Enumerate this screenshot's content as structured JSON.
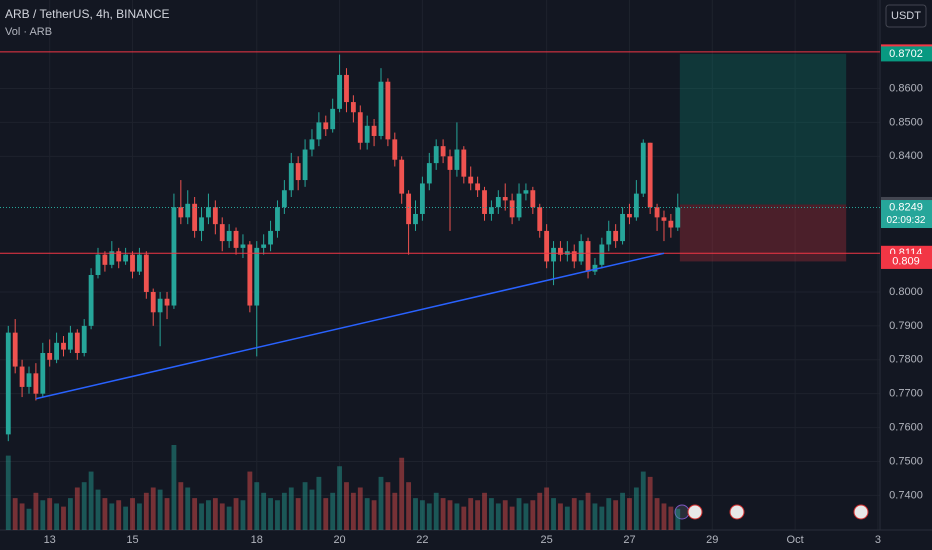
{
  "chart_data": {
    "type": "candlestick",
    "title": "ARB / TetherUS, 4h, BINANCE",
    "indicator": "Vol · ARB",
    "currency": "USDT",
    "open": [
      0.758,
      0.788,
      0.778,
      0.772,
      0.776,
      0.77,
      0.782,
      0.78,
      0.785,
      0.783,
      0.788,
      0.782,
      0.79,
      0.805,
      0.811,
      0.808,
      0.812,
      0.809,
      0.811,
      0.806,
      0.811,
      0.8,
      0.794,
      0.798,
      0.796,
      0.825,
      0.822,
      0.826,
      0.818,
      0.822,
      0.825,
      0.82,
      0.815,
      0.818,
      0.813,
      0.814,
      0.796,
      0.813,
      0.814,
      0.818,
      0.825,
      0.83,
      0.838,
      0.833,
      0.842,
      0.845,
      0.85,
      0.848,
      0.854,
      0.864,
      0.856,
      0.853,
      0.844,
      0.849,
      0.846,
      0.862,
      0.845,
      0.839,
      0.829,
      0.82,
      0.823,
      0.832,
      0.838,
      0.843,
      0.84,
      0.836,
      0.842,
      0.834,
      0.832,
      0.83,
      0.823,
      0.825,
      0.828,
      0.827,
      0.822,
      0.829,
      0.83,
      0.825,
      0.818,
      0.809,
      0.813,
      0.811,
      0.812,
      0.809,
      0.815,
      0.806,
      0.808,
      0.814,
      0.818,
      0.815,
      0.823,
      0.822,
      0.829,
      0.844,
      0.825,
      0.822,
      0.821,
      0.819
    ],
    "high": [
      0.79,
      0.792,
      0.78,
      0.778,
      0.779,
      0.785,
      0.786,
      0.788,
      0.787,
      0.79,
      0.789,
      0.792,
      0.807,
      0.813,
      0.812,
      0.815,
      0.813,
      0.813,
      0.812,
      0.813,
      0.812,
      0.801,
      0.8,
      0.8,
      0.829,
      0.833,
      0.83,
      0.828,
      0.825,
      0.829,
      0.827,
      0.822,
      0.82,
      0.819,
      0.817,
      0.815,
      0.815,
      0.817,
      0.821,
      0.827,
      0.833,
      0.841,
      0.84,
      0.845,
      0.848,
      0.853,
      0.852,
      0.857,
      0.87,
      0.866,
      0.858,
      0.855,
      0.852,
      0.851,
      0.866,
      0.863,
      0.847,
      0.84,
      0.83,
      0.827,
      0.834,
      0.841,
      0.845,
      0.845,
      0.842,
      0.85,
      0.843,
      0.837,
      0.834,
      0.831,
      0.827,
      0.83,
      0.832,
      0.829,
      0.832,
      0.832,
      0.831,
      0.826,
      0.82,
      0.815,
      0.815,
      0.815,
      0.814,
      0.817,
      0.816,
      0.81,
      0.816,
      0.821,
      0.82,
      0.825,
      0.826,
      0.833,
      0.845,
      0.844,
      0.826,
      0.824,
      0.823,
      0.829
    ],
    "low": [
      0.756,
      0.776,
      0.769,
      0.77,
      0.768,
      0.769,
      0.778,
      0.779,
      0.781,
      0.782,
      0.78,
      0.781,
      0.789,
      0.804,
      0.806,
      0.807,
      0.807,
      0.808,
      0.804,
      0.805,
      0.798,
      0.79,
      0.784,
      0.792,
      0.795,
      0.82,
      0.82,
      0.816,
      0.815,
      0.82,
      0.817,
      0.812,
      0.813,
      0.811,
      0.81,
      0.794,
      0.781,
      0.811,
      0.812,
      0.816,
      0.823,
      0.828,
      0.83,
      0.831,
      0.84,
      0.843,
      0.846,
      0.847,
      0.853,
      0.853,
      0.85,
      0.842,
      0.842,
      0.843,
      0.845,
      0.843,
      0.837,
      0.826,
      0.811,
      0.818,
      0.821,
      0.83,
      0.836,
      0.838,
      0.818,
      0.834,
      0.832,
      0.83,
      0.828,
      0.821,
      0.821,
      0.823,
      0.824,
      0.82,
      0.821,
      0.827,
      0.823,
      0.816,
      0.807,
      0.802,
      0.809,
      0.809,
      0.807,
      0.808,
      0.804,
      0.805,
      0.807,
      0.812,
      0.813,
      0.814,
      0.82,
      0.821,
      0.828,
      0.823,
      0.818,
      0.815,
      0.816,
      0.818
    ],
    "close": [
      0.788,
      0.778,
      0.772,
      0.776,
      0.77,
      0.782,
      0.78,
      0.785,
      0.783,
      0.788,
      0.782,
      0.79,
      0.805,
      0.811,
      0.808,
      0.812,
      0.809,
      0.811,
      0.806,
      0.811,
      0.8,
      0.794,
      0.798,
      0.796,
      0.825,
      0.822,
      0.826,
      0.818,
      0.822,
      0.825,
      0.82,
      0.815,
      0.818,
      0.813,
      0.814,
      0.796,
      0.813,
      0.814,
      0.818,
      0.825,
      0.83,
      0.838,
      0.833,
      0.842,
      0.845,
      0.85,
      0.848,
      0.854,
      0.864,
      0.856,
      0.853,
      0.844,
      0.849,
      0.846,
      0.862,
      0.845,
      0.839,
      0.829,
      0.82,
      0.823,
      0.832,
      0.838,
      0.843,
      0.84,
      0.836,
      0.842,
      0.834,
      0.832,
      0.83,
      0.823,
      0.825,
      0.828,
      0.827,
      0.822,
      0.829,
      0.83,
      0.825,
      0.818,
      0.809,
      0.813,
      0.811,
      0.812,
      0.809,
      0.815,
      0.806,
      0.808,
      0.814,
      0.818,
      0.815,
      0.823,
      0.822,
      0.829,
      0.844,
      0.825,
      0.822,
      0.821,
      0.819,
      0.8249
    ],
    "volume": [
      70,
      30,
      25,
      20,
      35,
      28,
      30,
      25,
      22,
      30,
      40,
      45,
      55,
      38,
      30,
      25,
      28,
      22,
      30,
      25,
      35,
      40,
      38,
      30,
      80,
      45,
      40,
      30,
      25,
      28,
      30,
      25,
      22,
      30,
      28,
      55,
      45,
      35,
      30,
      28,
      35,
      40,
      30,
      45,
      38,
      50,
      30,
      35,
      60,
      45,
      35,
      40,
      30,
      28,
      50,
      45,
      35,
      68,
      45,
      30,
      28,
      25,
      35,
      30,
      28,
      25,
      22,
      30,
      28,
      35,
      30,
      25,
      28,
      22,
      30,
      25,
      28,
      35,
      40,
      30,
      25,
      22,
      30,
      28,
      35,
      25,
      22,
      30,
      28,
      35,
      30,
      40,
      55,
      50,
      30,
      25,
      22,
      20
    ],
    "colors": {
      "up": "#26a69a",
      "down": "#ef5350"
    },
    "ylim": [
      0.7298,
      0.8861
    ],
    "yticks": [
      {
        "value": 0.74,
        "label": "0.7400"
      },
      {
        "value": 0.75,
        "label": "0.7500"
      },
      {
        "value": 0.76,
        "label": "0.7600"
      },
      {
        "value": 0.77,
        "label": "0.7700"
      },
      {
        "value": 0.78,
        "label": "0.7800"
      },
      {
        "value": 0.79,
        "label": "0.7900"
      },
      {
        "value": 0.8,
        "label": "0.8000"
      },
      {
        "value": 0.84,
        "label": "0.8400"
      },
      {
        "value": 0.85,
        "label": "0.8500"
      },
      {
        "value": 0.86,
        "label": "0.8600"
      }
    ],
    "xlim": [
      -1.2,
      126.3
    ],
    "xticks": [
      {
        "value": 6,
        "label": "13"
      },
      {
        "value": 18,
        "label": "15"
      },
      {
        "value": 36,
        "label": "18"
      },
      {
        "value": 48,
        "label": "20"
      },
      {
        "value": 60,
        "label": "22"
      },
      {
        "value": 78,
        "label": "25"
      },
      {
        "value": 90,
        "label": "27"
      },
      {
        "value": 102,
        "label": "29"
      },
      {
        "value": 114,
        "label": "Oct"
      },
      {
        "value": 126,
        "label": "3"
      }
    ],
    "levels": [
      {
        "value": 0.8708,
        "color": "#f23645"
      },
      {
        "value": 0.8114,
        "color": "#f23645"
      }
    ],
    "trendline": {
      "x": [
        4,
        95
      ],
      "y": [
        0.7685,
        0.8114
      ],
      "color": "#2962ff"
    },
    "position": {
      "x": [
        97.3,
        121.4
      ],
      "target": 0.8702,
      "entry": 0.8258,
      "stop": 0.809
    },
    "last": {
      "value": 0.8249,
      "countdown": "02:09:32"
    }
  }
}
